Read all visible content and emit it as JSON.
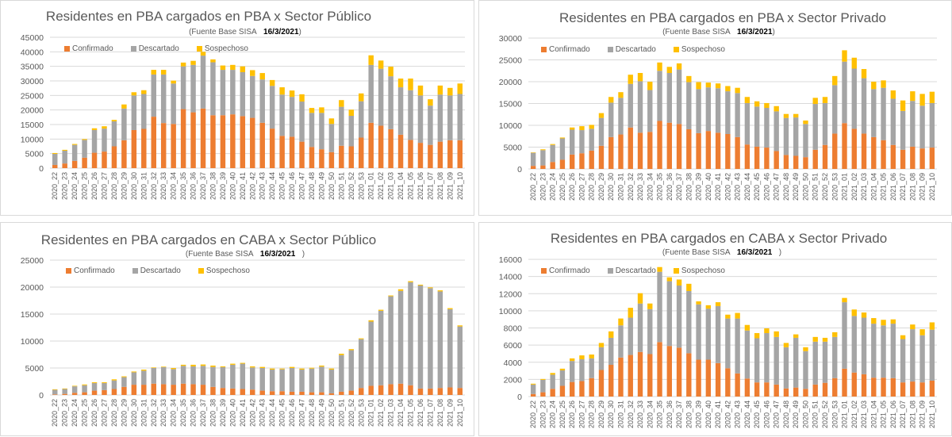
{
  "colors": {
    "Confirmado": "#ED7D31",
    "Descartado": "#A5A5A5",
    "Sospechoso": "#FFC000"
  },
  "chart_data": [
    {
      "type": "bar",
      "stacked": true,
      "title": "Residentes en  PBA cargados en PBA x Sector Público",
      "subtitle_source": "(Fuente  Base SISA",
      "subtitle_date": "16/3/2021",
      "subtitle_close": ")",
      "xlabel": "",
      "ylabel": "",
      "ylim": [
        0,
        45000
      ],
      "yticks": [
        0,
        5000,
        10000,
        15000,
        20000,
        25000,
        30000,
        35000,
        40000,
        45000
      ],
      "grid": true,
      "legend": "top-left",
      "categories": [
        "2020_22",
        "2020_23",
        "2020_24",
        "2020_25",
        "2020_26",
        "2020_27",
        "2020_28",
        "2020_29",
        "2020_30",
        "2020_31",
        "2020_32",
        "2020_33",
        "2020_34",
        "2020_35",
        "2020_36",
        "2020_37",
        "2020_38",
        "2020_39",
        "2020_40",
        "2020_41",
        "2020_42",
        "2020_43",
        "2020_44",
        "2020_45",
        "2020_46",
        "2020_47",
        "2020_48",
        "2020_49",
        "2020_50",
        "2020_51",
        "2020_52",
        "2020_53",
        "2021_01",
        "2021_02",
        "2021_03",
        "2021_04",
        "2021_05",
        "2021_06",
        "2021_07",
        "2021_08",
        "2021_09",
        "2021_10"
      ],
      "series": [
        {
          "name": "Confirmado",
          "values": [
            1100,
            1600,
            2500,
            3600,
            5300,
            5700,
            7500,
            9600,
            13100,
            13500,
            17700,
            15500,
            15200,
            20300,
            19200,
            20500,
            18200,
            18200,
            18500,
            17900,
            17300,
            15600,
            13600,
            11100,
            10800,
            9100,
            7300,
            6500,
            5500,
            7700,
            7500,
            10500,
            15600,
            14600,
            13400,
            11500,
            9700,
            8700,
            8000,
            9100,
            9600,
            9600
          ]
        },
        {
          "name": "Descartado",
          "values": [
            3800,
            4400,
            5500,
            6100,
            7800,
            7900,
            8600,
            10900,
            11900,
            12000,
            14500,
            16700,
            13900,
            14700,
            16300,
            18200,
            18200,
            15600,
            15300,
            15100,
            14400,
            14900,
            14700,
            14200,
            13700,
            13800,
            11700,
            12500,
            9700,
            13400,
            10500,
            12500,
            19900,
            19600,
            18200,
            16300,
            17100,
            16300,
            13500,
            16200,
            15400,
            15900
          ]
        },
        {
          "name": "Sospechoso",
          "values": [
            300,
            300,
            300,
            300,
            600,
            800,
            500,
            1400,
            1100,
            1300,
            1600,
            1600,
            1000,
            1300,
            1400,
            1300,
            1000,
            1500,
            1700,
            2000,
            2000,
            2200,
            2000,
            2500,
            2200,
            2500,
            1700,
            1900,
            1900,
            2300,
            2100,
            2700,
            3300,
            2800,
            3300,
            3000,
            4000,
            3400,
            2200,
            3100,
            2600,
            3600
          ]
        }
      ]
    },
    {
      "type": "bar",
      "stacked": true,
      "title": "Residentes en  PBA cargados en PBA x Sector Privado",
      "subtitle_source": "(Fuente  Base SISA",
      "subtitle_date": "16/3/2021",
      "subtitle_close": ")",
      "xlabel": "",
      "ylabel": "",
      "ylim": [
        0,
        30000
      ],
      "yticks": [
        0,
        5000,
        10000,
        15000,
        20000,
        25000,
        30000
      ],
      "grid": true,
      "legend": "top-left",
      "categories": [
        "2020_22",
        "2020_23",
        "2020_24",
        "2020_25",
        "2020_26",
        "2020_27",
        "2020_28",
        "2020_29",
        "2020_30",
        "2020_31",
        "2020_32",
        "2020_33",
        "2020_34",
        "2020_35",
        "2020_36",
        "2020_37",
        "2020_38",
        "2020_39",
        "2020_40",
        "2020_41",
        "2020_42",
        "2020_43",
        "2020_44",
        "2020_45",
        "2020_46",
        "2020_47",
        "2020_48",
        "2020_49",
        "2020_50",
        "2020_51",
        "2020_52",
        "2020_53",
        "2021_01",
        "2021_02",
        "2021_03",
        "2021_04",
        "2021_05",
        "2021_06",
        "2021_07",
        "2021_08",
        "2021_09",
        "2021_10"
      ],
      "series": [
        {
          "name": "Confirmado",
          "values": [
            700,
            800,
            1600,
            2100,
            3300,
            3600,
            4200,
            5300,
            7300,
            7900,
            9500,
            8300,
            8500,
            11000,
            10600,
            10300,
            9100,
            8200,
            8700,
            8300,
            8000,
            7300,
            5600,
            5100,
            4900,
            4100,
            3200,
            3000,
            2700,
            4400,
            5500,
            8100,
            10500,
            9200,
            8100,
            7300,
            6600,
            5500,
            4400,
            5100,
            4700,
            4900
          ]
        },
        {
          "name": "Descartado",
          "values": [
            3000,
            3500,
            3900,
            4900,
            5700,
            5300,
            5000,
            6400,
            7900,
            8400,
            10000,
            11800,
            9600,
            11500,
            11400,
            12500,
            10800,
            10100,
            10000,
            10200,
            9800,
            10100,
            9500,
            9200,
            9100,
            9100,
            8500,
            8800,
            7600,
            10500,
            9600,
            11100,
            14100,
            13800,
            12700,
            11000,
            12000,
            10600,
            8900,
            10500,
            9800,
            10200
          ]
        },
        {
          "name": "Sospechoso",
          "values": [
            100,
            200,
            200,
            200,
            500,
            900,
            900,
            1100,
            1300,
            1300,
            2100,
            1900,
            1900,
            1900,
            1400,
            1400,
            1400,
            1600,
            1100,
            1100,
            1200,
            1200,
            1400,
            1200,
            1100,
            1200,
            900,
            800,
            800,
            1400,
            1400,
            2100,
            2600,
            2500,
            2100,
            1700,
            1700,
            1900,
            2400,
            2200,
            2700,
            2600
          ]
        }
      ]
    },
    {
      "type": "bar",
      "stacked": true,
      "title": "Residentes en  PBA cargados en CABA x Sector Público",
      "subtitle_source": "(Fuente  Base SISA",
      "subtitle_date": "16/3/2021",
      "subtitle_close": ")",
      "xlabel": "",
      "ylabel": "",
      "ylim": [
        0,
        25000
      ],
      "yticks": [
        0,
        5000,
        10000,
        15000,
        20000,
        25000
      ],
      "grid": true,
      "legend": "top-left",
      "categories": [
        "2020_22",
        "2020_23",
        "2020_24",
        "2020_25",
        "2020_26",
        "2020_27",
        "2020_28",
        "2020_29",
        "2020_30",
        "2020_31",
        "2020_32",
        "2020_33",
        "2020_34",
        "2020_35",
        "2020_36",
        "2020_37",
        "2020_38",
        "2020_39",
        "2020_40",
        "2020_41",
        "2020_42",
        "2020_43",
        "2020_44",
        "2020_45",
        "2020_46",
        "2020_47",
        "2020_48",
        "2020_49",
        "2020_50",
        "2020_51",
        "2020_52",
        "2020_53",
        "2021_01",
        "2021_02",
        "2021_03",
        "2021_04",
        "2021_05",
        "2021_06",
        "2021_07",
        "2021_08",
        "2021_09",
        "2021_10"
      ],
      "series": [
        {
          "name": "Confirmado",
          "values": [
            100,
            200,
            400,
            500,
            800,
            900,
            1100,
            1500,
            1900,
            1900,
            2100,
            2000,
            1900,
            2100,
            2000,
            1900,
            1500,
            1300,
            1200,
            1100,
            1000,
            800,
            700,
            700,
            600,
            600,
            500,
            500,
            300,
            600,
            800,
            1300,
            1700,
            1800,
            2000,
            2100,
            1800,
            1200,
            1200,
            1300,
            1400,
            1300
          ]
        },
        {
          "name": "Descartado",
          "values": [
            850,
            900,
            1200,
            1300,
            1400,
            1300,
            1600,
            1800,
            2300,
            2600,
            2900,
            3150,
            2900,
            3300,
            3300,
            3500,
            3700,
            3850,
            4400,
            4700,
            4100,
            4200,
            4000,
            4050,
            4400,
            4100,
            4400,
            4750,
            4400,
            6800,
            7500,
            9050,
            11900,
            13800,
            16300,
            17200,
            19100,
            19100,
            18600,
            17900,
            14500,
            11400
          ]
        },
        {
          "name": "Sospechoso",
          "values": [
            100,
            100,
            100,
            150,
            150,
            150,
            200,
            150,
            150,
            200,
            100,
            100,
            200,
            200,
            300,
            250,
            250,
            150,
            200,
            150,
            200,
            200,
            200,
            150,
            200,
            200,
            150,
            200,
            200,
            250,
            200,
            150,
            250,
            200,
            150,
            300,
            200,
            150,
            150,
            200,
            200,
            200
          ]
        }
      ]
    },
    {
      "type": "bar",
      "stacked": true,
      "title": "Residentes en  PBA cargados en CABA x Sector Privado",
      "subtitle_source": "(Fuente  Base SISA",
      "subtitle_date": "16/3/2021",
      "subtitle_close": ")",
      "xlabel": "",
      "ylabel": "",
      "ylim": [
        0,
        16000
      ],
      "yticks": [
        0,
        2000,
        4000,
        6000,
        8000,
        10000,
        12000,
        14000,
        16000
      ],
      "grid": true,
      "legend": "top-left",
      "categories": [
        "2020_22",
        "2020_23",
        "2020_24",
        "2020_25",
        "2020_26",
        "2020_27",
        "2020_28",
        "2020_29",
        "2020_30",
        "2020_31",
        "2020_32",
        "2020_33",
        "2020_34",
        "2020_35",
        "2020_36",
        "2020_37",
        "2020_38",
        "2020_39",
        "2020_40",
        "2020_41",
        "2020_42",
        "2020_43",
        "2020_44",
        "2020_45",
        "2020_46",
        "2020_47",
        "2020_48",
        "2020_49",
        "2020_50",
        "2020_51",
        "2020_52",
        "2020_53",
        "2021_01",
        "2021_02",
        "2021_03",
        "2021_04",
        "2021_05",
        "2021_06",
        "2021_07",
        "2021_08",
        "2021_09",
        "2021_10"
      ],
      "series": [
        {
          "name": "Confirmado",
          "values": [
            300,
            500,
            900,
            1250,
            1700,
            1800,
            2150,
            3100,
            3700,
            4550,
            4850,
            5200,
            4950,
            6350,
            5900,
            5700,
            5050,
            4300,
            4300,
            3900,
            3300,
            2700,
            2100,
            1650,
            1650,
            1400,
            950,
            1050,
            900,
            1400,
            1600,
            2150,
            3250,
            2800,
            2600,
            2200,
            2200,
            2150,
            1650,
            1750,
            1650,
            1850
          ]
        },
        {
          "name": "Descartado",
          "values": [
            1100,
            1450,
            1650,
            1800,
            2450,
            2550,
            2300,
            2650,
            3150,
            3750,
            4350,
            5650,
            5250,
            8200,
            7550,
            7250,
            7250,
            6450,
            5950,
            6650,
            5800,
            6400,
            5600,
            5150,
            5750,
            5550,
            4800,
            5800,
            4400,
            5000,
            4800,
            4800,
            7750,
            6600,
            6600,
            6300,
            6100,
            6350,
            5050,
            6100,
            5500,
            5950
          ]
        },
        {
          "name": "Sospechoso",
          "values": [
            100,
            100,
            200,
            200,
            300,
            450,
            450,
            500,
            750,
            800,
            1150,
            1200,
            650,
            550,
            450,
            700,
            850,
            350,
            400,
            450,
            450,
            650,
            650,
            600,
            550,
            650,
            500,
            400,
            450,
            550,
            450,
            550,
            500,
            750,
            600,
            650,
            650,
            500,
            450,
            550,
            700,
            850
          ]
        }
      ]
    }
  ]
}
